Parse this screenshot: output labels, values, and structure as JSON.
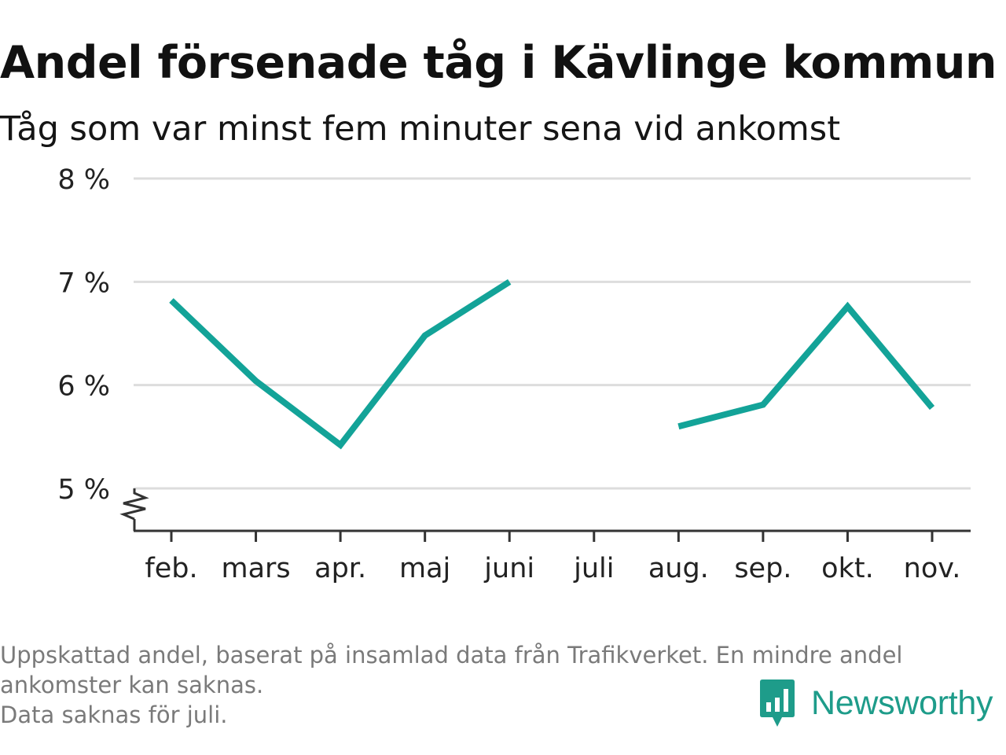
{
  "header": {
    "title": "Andel försenade tåg i Kävlinge kommun",
    "subtitle": "Tåg som var minst fem minuter sena vid ankomst"
  },
  "footnote": {
    "lines": [
      "Uppskattad andel, baserat på insamlad data från Trafikverket. En mindre andel",
      "ankomster kan saknas.",
      "Data saknas för juli."
    ]
  },
  "brand": {
    "name": "Newsworthy",
    "color": "#1e9c8a",
    "icon": "bar-chart-speech-bubble-icon"
  },
  "colors": {
    "line": "#13a398",
    "grid": "#dddddd",
    "axis": "#333333",
    "text": "#222222",
    "footnote": "#7a7a7a"
  },
  "chart_data": {
    "type": "line",
    "title": "Andel försenade tåg i Kävlinge kommun",
    "subtitle": "Tåg som var minst fem minuter sena vid ankomst",
    "categories": [
      "feb.",
      "mars",
      "apr.",
      "maj",
      "juni",
      "juli",
      "aug.",
      "sep.",
      "okt.",
      "nov."
    ],
    "series": [
      {
        "values": [
          6.82,
          6.04,
          5.42,
          6.48,
          7.0,
          null,
          5.6,
          5.81,
          6.76,
          5.78
        ]
      }
    ],
    "y_ticks": [
      5,
      6,
      7,
      8
    ],
    "y_tick_labels": [
      "5 %",
      "6 %",
      "7 %",
      "8 %"
    ],
    "ylim": [
      4.6,
      8
    ],
    "y_axis_break": true,
    "grid": "horizontal",
    "legend": "none",
    "xlabel": "",
    "ylabel": ""
  }
}
